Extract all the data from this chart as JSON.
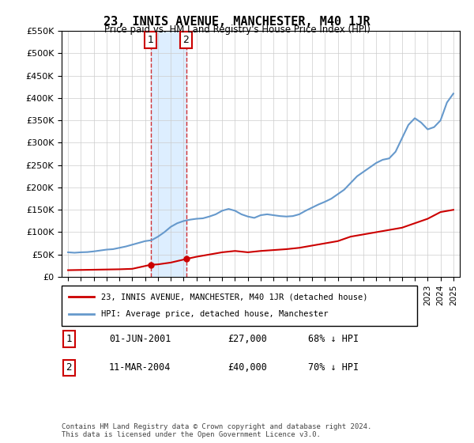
{
  "title": "23, INNIS AVENUE, MANCHESTER, M40 1JR",
  "subtitle": "Price paid vs. HM Land Registry's House Price Index (HPI)",
  "legend_line1": "23, INNIS AVENUE, MANCHESTER, M40 1JR (detached house)",
  "legend_line2": "HPI: Average price, detached house, Manchester",
  "sale1_date": "01-JUN-2001",
  "sale1_price": 27000,
  "sale1_label": "68% ↓ HPI",
  "sale2_date": "11-MAR-2004",
  "sale2_price": 40000,
  "sale2_label": "70% ↓ HPI",
  "footer": "Contains HM Land Registry data © Crown copyright and database right 2024.\nThis data is licensed under the Open Government Licence v3.0.",
  "red_color": "#cc0000",
  "blue_color": "#6699cc",
  "shade_color": "#ddeeff",
  "ylim": [
    0,
    550000
  ],
  "yticks": [
    0,
    50000,
    100000,
    150000,
    200000,
    250000,
    300000,
    350000,
    400000,
    450000,
    500000,
    550000
  ],
  "xlim_start": 1994.5,
  "xlim_end": 2025.5,
  "bg_color": "#ffffff",
  "grid_color": "#cccccc"
}
